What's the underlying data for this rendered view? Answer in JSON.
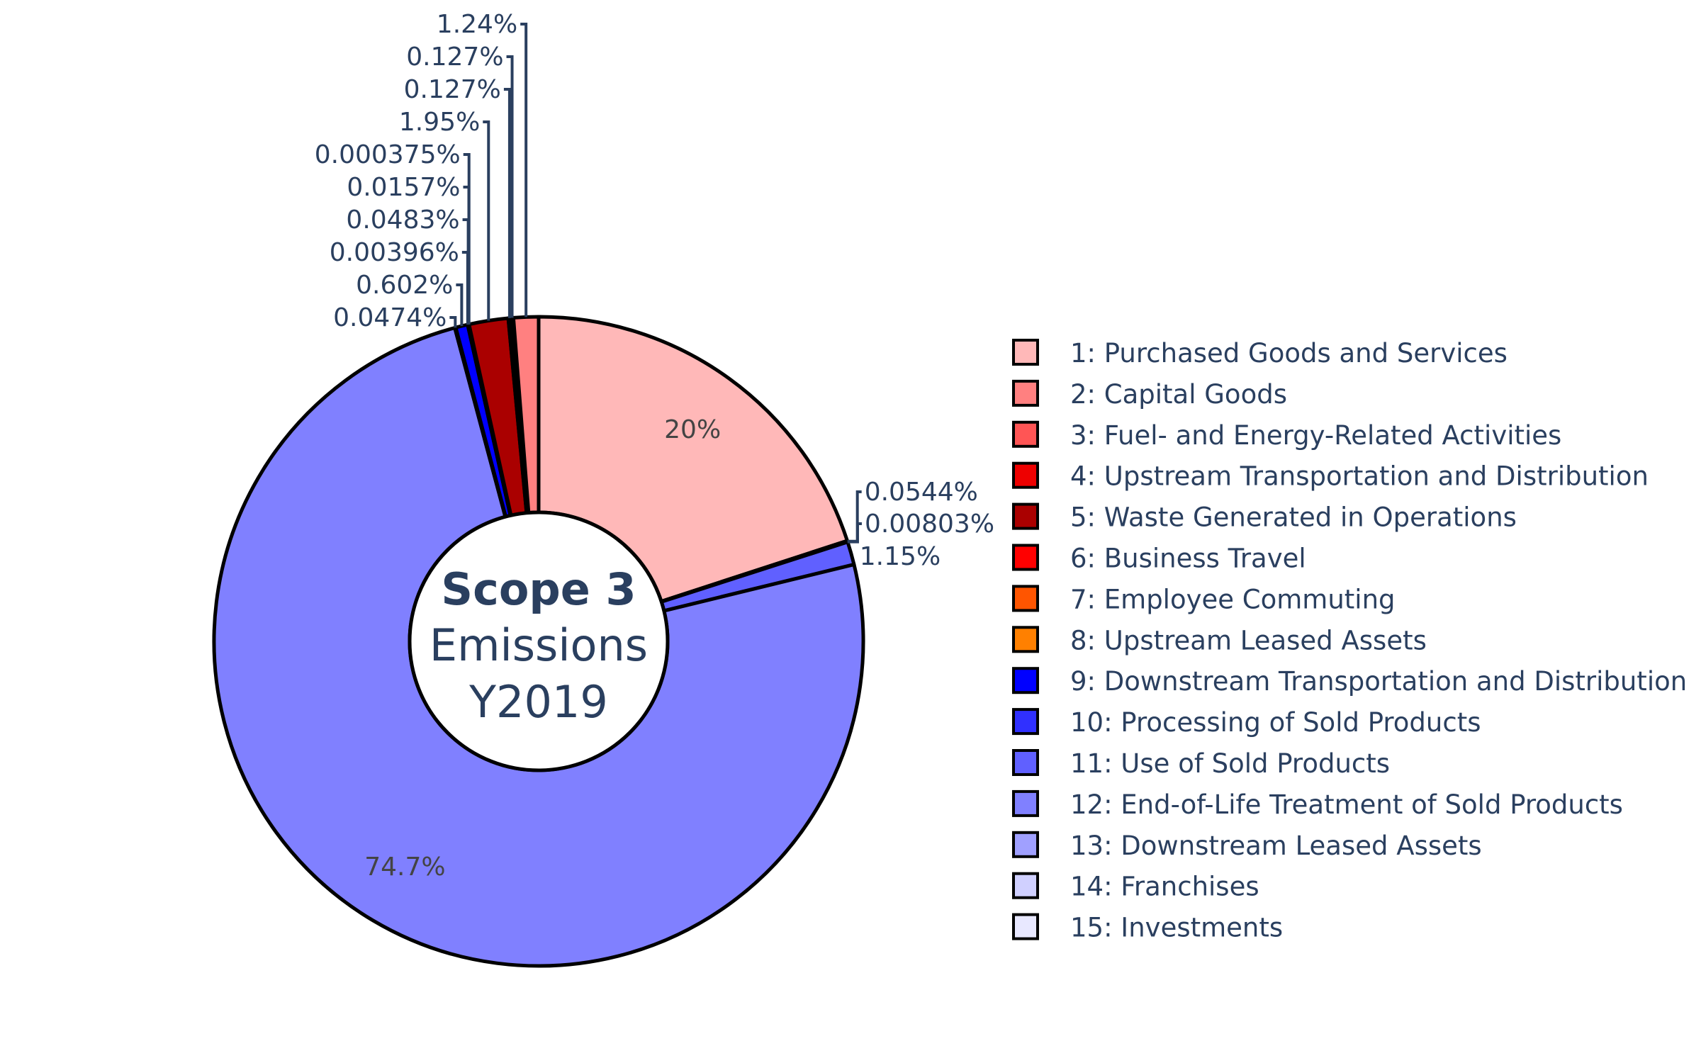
{
  "chart_data": {
    "type": "pie",
    "hole": true,
    "center_text": {
      "line1": "Scope 3",
      "line2": "Emissions",
      "line3": "Y2019"
    },
    "legend_position": "right",
    "slices": [
      {
        "name": "1: Purchased Goods and Services",
        "value": 20.0,
        "label": "20%",
        "color": "#ffb8b8"
      },
      {
        "name": "13: Downstream Leased Assets",
        "value": 0.0544,
        "label": "0.0544%",
        "color": "#a0a0ff"
      },
      {
        "name": "14: Franchises",
        "value": 0.00803,
        "label": "0.00803%",
        "color": "#d0d0ff"
      },
      {
        "name": "11: Use of Sold Products",
        "value": 1.15,
        "label": "1.15%",
        "color": "#6060ff"
      },
      {
        "name": "12: End-of-Life Treatment of Sold Products",
        "value": 74.7,
        "label": "74.7%",
        "color": "#8080ff"
      },
      {
        "name": "10: Processing of Sold Products",
        "value": 0.0474,
        "label": "0.0474%",
        "color": "#3030ff"
      },
      {
        "name": "9: Downstream Transportation and Distribution",
        "value": 0.602,
        "label": "0.602%",
        "color": "#0000ff"
      },
      {
        "name": "8: Upstream Leased Assets",
        "value": 0.00396,
        "label": "0.00396%",
        "color": "#ff8000"
      },
      {
        "name": "7: Employee Commuting",
        "value": 0.0483,
        "label": "0.0483%",
        "color": "#ff5500"
      },
      {
        "name": "15: Investments",
        "value": 0.0157,
        "label": "0.0157%",
        "color": "#e8e8ff"
      },
      {
        "name": "6: Business Travel",
        "value": 0.000375,
        "label": "0.000375%",
        "color": "#ff0000"
      },
      {
        "name": "5: Waste Generated in Operations",
        "value": 1.95,
        "label": "1.95%",
        "color": "#aa0000"
      },
      {
        "name": "4: Upstream Transportation and Distribution",
        "value": 0.127,
        "label": "0.127%",
        "color": "#ee0000"
      },
      {
        "name": "3: Fuel- and Energy-Related Activities",
        "value": 0.127,
        "label": "0.127%",
        "color": "#ff5555"
      },
      {
        "name": "2: Capital Goods",
        "value": 1.24,
        "label": "1.24%",
        "color": "#ff8080"
      }
    ],
    "legend": [
      {
        "name": "1: Purchased Goods and Services",
        "color": "#ffb8b8"
      },
      {
        "name": "2: Capital Goods",
        "color": "#ff8080"
      },
      {
        "name": "3: Fuel- and Energy-Related Activities",
        "color": "#ff5555"
      },
      {
        "name": "4: Upstream Transportation and Distribution",
        "color": "#ee0000"
      },
      {
        "name": "5: Waste Generated in Operations",
        "color": "#aa0000"
      },
      {
        "name": "6: Business Travel",
        "color": "#ff0000"
      },
      {
        "name": "7: Employee Commuting",
        "color": "#ff5500"
      },
      {
        "name": "8: Upstream Leased Assets",
        "color": "#ff8000"
      },
      {
        "name": "9: Downstream Transportation and Distribution",
        "color": "#0000ff"
      },
      {
        "name": "10: Processing of Sold Products",
        "color": "#3030ff"
      },
      {
        "name": "11: Use of Sold Products",
        "color": "#6060ff"
      },
      {
        "name": "12: End-of-Life Treatment of Sold Products",
        "color": "#8080ff"
      },
      {
        "name": "13: Downstream Leased Assets",
        "color": "#a0a0ff"
      },
      {
        "name": "14: Franchises",
        "color": "#d0d0ff"
      },
      {
        "name": "15: Investments",
        "color": "#e8e8ff"
      }
    ]
  }
}
